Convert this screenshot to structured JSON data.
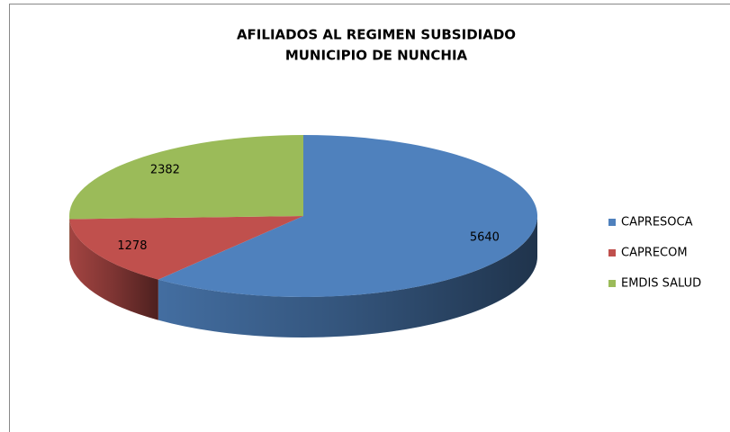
{
  "chart_data": {
    "type": "pie",
    "title": [
      "AFILIADOS AL REGIMEN SUBSIDIADO",
      "MUNICIPIO DE NUNCHIA"
    ],
    "categories": [
      "CAPRESOCA",
      "CAPRECOM",
      "EMDIS SALUD"
    ],
    "values": [
      5640,
      1278,
      2382
    ],
    "colors": [
      "#4f81bd",
      "#c0504d",
      "#9bbb59"
    ],
    "legend": "right"
  }
}
